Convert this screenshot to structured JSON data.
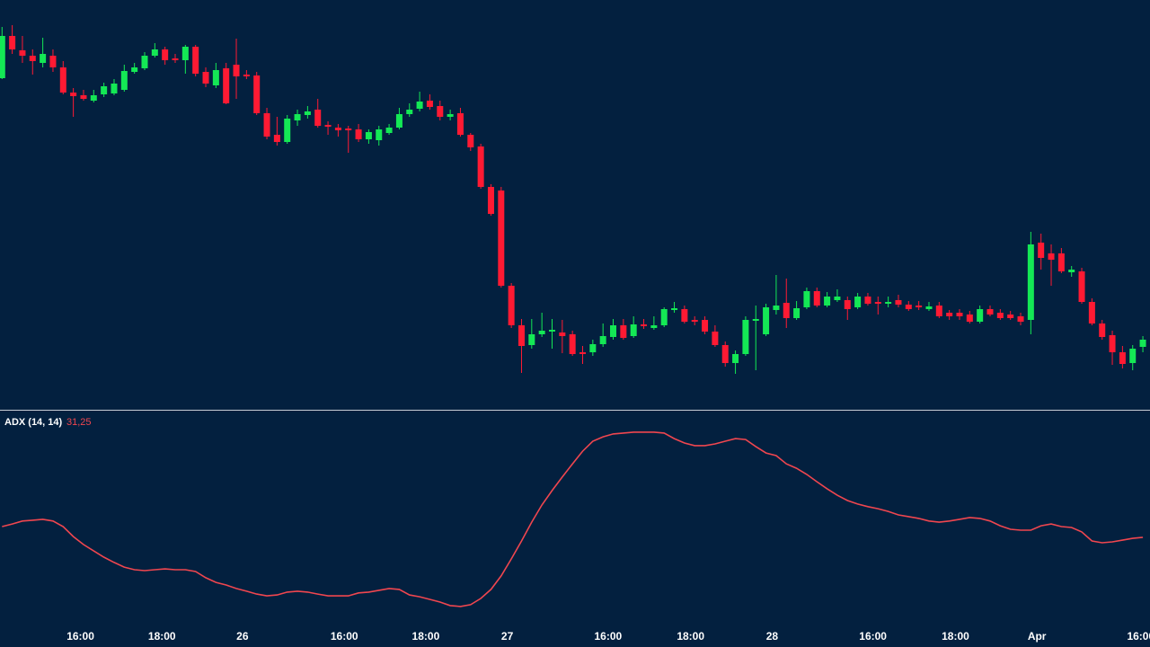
{
  "chart_data": [
    {
      "type": "candlestick",
      "up_color": "#14e855",
      "down_color": "#ff1a33",
      "ylim": [
        4,
        460
      ],
      "open": [
        373,
        420,
        404,
        398,
        390,
        398,
        385,
        357,
        354,
        348,
        355,
        356,
        360,
        380,
        384,
        398,
        405,
        395,
        393,
        408,
        380,
        365,
        384,
        388,
        377,
        376,
        334,
        310,
        302,
        326,
        332,
        338,
        321,
        318,
        317,
        316,
        305,
        304,
        312,
        318,
        333,
        339,
        348,
        342,
        330,
        334,
        310,
        297,
        252,
        248,
        142,
        98,
        76,
        88,
        91,
        90,
        88,
        68,
        68,
        77,
        85,
        98,
        86,
        99,
        95,
        98,
        115,
        116,
        104,
        104,
        91,
        76,
        56,
        66,
        103,
        88,
        115,
        123,
        106,
        118,
        136,
        120,
        126,
        126,
        118,
        130,
        124,
        122,
        126,
        121,
        120,
        116,
        120,
        112,
        112,
        110,
        102,
        116,
        112,
        110,
        108,
        104,
        190,
        178,
        178,
        157,
        158,
        124,
        100,
        87,
        68,
        56,
        74
      ],
      "high": [
        430,
        432,
        420,
        405,
        418,
        405,
        392,
        362,
        360,
        360,
        368,
        372,
        388,
        390,
        402,
        412,
        408,
        400,
        410,
        410,
        385,
        390,
        390,
        417,
        382,
        380,
        340,
        330,
        332,
        338,
        342,
        350,
        325,
        322,
        320,
        322,
        316,
        320,
        322,
        340,
        345,
        358,
        355,
        348,
        338,
        340,
        312,
        300,
        255,
        252,
        145,
        105,
        105,
        112,
        105,
        104,
        92,
        75,
        82,
        100,
        105,
        105,
        108,
        105,
        108,
        118,
        124,
        120,
        108,
        108,
        98,
        80,
        70,
        108,
        120,
        122,
        154,
        150,
        125,
        140,
        140,
        135,
        138,
        130,
        134,
        134,
        130,
        130,
        132,
        125,
        125,
        124,
        124,
        115,
        116,
        114,
        120,
        120,
        116,
        114,
        112,
        202,
        200,
        188,
        184,
        164,
        162,
        128,
        104,
        92,
        75,
        76,
        86
      ],
      "low": [
        372,
        400,
        390,
        377,
        385,
        380,
        355,
        330,
        348,
        346,
        352,
        354,
        358,
        378,
        382,
        396,
        388,
        390,
        378,
        375,
        363,
        362,
        344,
        350,
        372,
        332,
        305,
        298,
        300,
        320,
        328,
        318,
        310,
        308,
        290,
        302,
        300,
        298,
        310,
        316,
        330,
        336,
        338,
        326,
        326,
        308,
        292,
        250,
        220,
        140,
        95,
        45,
        72,
        85,
        72,
        67,
        64,
        55,
        64,
        74,
        82,
        82,
        84,
        94,
        93,
        96,
        112,
        100,
        98,
        88,
        74,
        52,
        44,
        64,
        48,
        86,
        110,
        95,
        104,
        116,
        118,
        118,
        124,
        104,
        116,
        120,
        110,
        118,
        118,
        114,
        115,
        114,
        106,
        104,
        104,
        100,
        100,
        108,
        104,
        104,
        98,
        88,
        160,
        142,
        156,
        152,
        122,
        98,
        82,
        54,
        50,
        48,
        68
      ],
      "close": [
        420,
        405,
        398,
        392,
        400,
        385,
        357,
        353,
        350,
        354,
        364,
        367,
        381,
        385,
        398,
        405,
        393,
        393,
        408,
        378,
        367,
        382,
        345,
        375,
        375,
        334,
        308,
        302,
        328,
        333,
        336,
        320,
        319,
        315,
        315,
        305,
        313,
        316,
        318,
        333,
        338,
        347,
        341,
        330,
        333,
        310,
        296,
        252,
        222,
        142,
        98,
        75,
        88,
        92,
        93,
        86,
        66,
        66,
        77,
        86,
        98,
        84,
        99,
        97,
        98,
        116,
        117,
        102,
        102,
        91,
        76,
        56,
        66,
        104,
        105,
        118,
        120,
        106,
        117,
        136,
        120,
        130,
        130,
        116,
        130,
        122,
        122,
        124,
        121,
        116,
        118,
        119,
        108,
        108,
        108,
        102,
        116,
        110,
        106,
        106,
        102,
        188,
        173,
        171,
        158,
        160,
        124,
        100,
        85,
        68,
        55,
        72,
        82
      ]
    },
    {
      "type": "line",
      "ylim": [
        0,
        73.5
      ],
      "xlim": [
        -0.2,
        112.7
      ],
      "xticks": [
        {
          "value": 7.7,
          "label": "16:00"
        },
        {
          "value": 15.7,
          "label": "18:00"
        },
        {
          "value": 23.6,
          "label": "26"
        },
        {
          "value": 33.6,
          "label": "16:00"
        },
        {
          "value": 41.6,
          "label": "18:00"
        },
        {
          "value": 49.6,
          "label": "27"
        },
        {
          "value": 59.5,
          "label": "16:00"
        },
        {
          "value": 67.6,
          "label": "18:00"
        },
        {
          "value": 75.6,
          "label": "28"
        },
        {
          "value": 85.5,
          "label": "16:00"
        },
        {
          "value": 93.6,
          "label": "18:00"
        },
        {
          "value": 101.6,
          "label": "Apr"
        },
        {
          "value": 111.8,
          "label": "16:00"
        }
      ],
      "series": [
        {
          "name": "ADX (14, 14)",
          "color": "#f0464f",
          "last_value_label": "31,25",
          "values": [
            34.9,
            35.8,
            36.8,
            37.1,
            37.4,
            36.8,
            34.9,
            31.5,
            28.8,
            26.6,
            24.5,
            22.7,
            21.1,
            20.2,
            19.9,
            20.2,
            20.5,
            20.2,
            20.2,
            19.6,
            17.5,
            15.9,
            15.0,
            13.8,
            12.9,
            11.9,
            11.3,
            11.6,
            12.6,
            12.9,
            12.6,
            11.9,
            11.3,
            11.3,
            11.3,
            12.3,
            12.6,
            13.2,
            13.8,
            13.5,
            11.6,
            11.0,
            10.1,
            9.2,
            8.0,
            7.7,
            8.3,
            10.4,
            13.5,
            18.1,
            23.9,
            30.0,
            36.4,
            42.3,
            47.2,
            51.8,
            56.3,
            60.6,
            64.0,
            65.5,
            66.5,
            66.8,
            67.1,
            67.1,
            67.1,
            66.8,
            64.9,
            63.4,
            62.5,
            62.5,
            63.1,
            64.0,
            64.9,
            64.6,
            62.2,
            60.0,
            59.1,
            56.3,
            54.8,
            52.7,
            50.2,
            47.8,
            45.6,
            43.8,
            42.6,
            41.7,
            41.0,
            40.1,
            38.9,
            38.3,
            37.7,
            36.8,
            36.4,
            36.8,
            37.4,
            38.0,
            37.7,
            36.8,
            35.2,
            34.0,
            33.7,
            33.7,
            35.2,
            35.8,
            34.9,
            34.6,
            33.1,
            30.0,
            29.4,
            29.7,
            30.3,
            30.9,
            31.25
          ]
        }
      ]
    }
  ]
}
